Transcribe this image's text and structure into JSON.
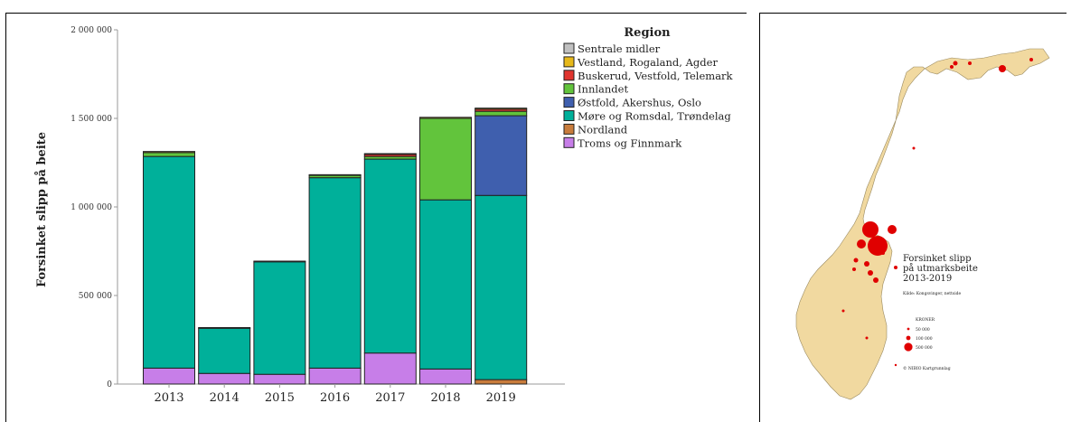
{
  "chart_data": {
    "type": "bar",
    "stacked": true,
    "categories": [
      "2013",
      "2014",
      "2015",
      "2016",
      "2017",
      "2018",
      "2019"
    ],
    "ylabel": "Forsinket slipp på beite",
    "ylim": [
      0,
      2000000
    ],
    "yticks": [
      0,
      500000,
      1000000,
      1500000,
      2000000
    ],
    "ytick_labels": [
      "0",
      "500 000",
      "1 000 000",
      "1 500 000",
      "2 000 000"
    ],
    "legend_title": "Region",
    "legend_position": "top-right",
    "grid": false,
    "series": [
      {
        "name": "Troms og Finnmark",
        "color": "#c77ee8",
        "values": [
          90000,
          60000,
          55000,
          90000,
          175000,
          85000,
          0
        ]
      },
      {
        "name": "Nordland",
        "color": "#c87c3c",
        "values": [
          0,
          0,
          0,
          0,
          0,
          0,
          25000
        ]
      },
      {
        "name": "Møre og Romsdal, Trøndelag",
        "color": "#00b09a",
        "values": [
          1195000,
          255000,
          635000,
          1075000,
          1095000,
          955000,
          1040000
        ]
      },
      {
        "name": "Østfold, Akershus, Oslo",
        "color": "#3f5fae",
        "values": [
          0,
          0,
          0,
          0,
          0,
          0,
          450000
        ]
      },
      {
        "name": "Innlandet",
        "color": "#62c43c",
        "values": [
          22000,
          4000,
          4000,
          15000,
          15000,
          460000,
          25000
        ]
      },
      {
        "name": "Buskerud, Vestfold, Telemark",
        "color": "#e0342e",
        "values": [
          0,
          0,
          0,
          0,
          12000,
          0,
          12000
        ]
      },
      {
        "name": "Vestland, Rogaland, Agder",
        "color": "#e6b81a",
        "values": [
          6000,
          0,
          0,
          2000,
          4000,
          6000,
          6000
        ]
      },
      {
        "name": "Sentrale midler",
        "color": "#c0c0c0",
        "values": [
          0,
          0,
          0,
          0,
          0,
          0,
          0
        ]
      }
    ],
    "legend_order": [
      "Sentrale midler",
      "Vestland, Rogaland, Agder",
      "Buskerud, Vestfold, Telemark",
      "Innlandet",
      "Østfold, Akershus, Oslo",
      "Møre og Romsdal, Trøndelag",
      "Nordland",
      "Troms og Finnmark"
    ]
  },
  "map": {
    "title_lines": [
      "Forsinket slipp",
      "på utmarksbeite",
      "2013-2019"
    ],
    "source": "Kilde: Kongsvinger, nettside",
    "legend_heading": "KRONER",
    "legend_items": [
      "50 000",
      "100 000",
      "500 000"
    ],
    "copyright": "© NIBIO Kartgrunnlag",
    "land_color": "#f1d9a0",
    "dot_color": "#e00000"
  }
}
